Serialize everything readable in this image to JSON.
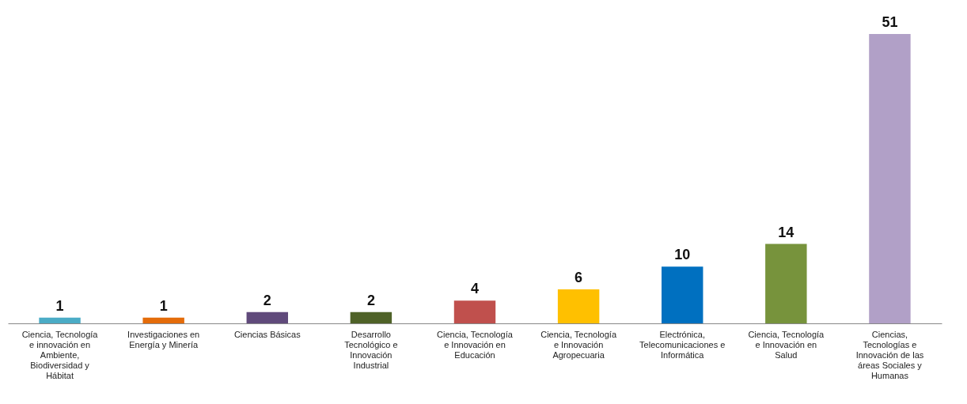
{
  "chart_data": {
    "type": "bar",
    "categories": [
      "Ciencia, Tecnología e innovación en Ambiente, Biodiversidad y Hábitat",
      "Investigaciones en Energía y Minería",
      "Ciencias Básicas",
      "Desarrollo Tecnológico e Innovación Industrial",
      "Ciencia, Tecnología e Innovación en Educación",
      "Ciencia, Tecnología e Innovación Agropecuaria",
      "Electrónica, Telecomunicaciones e Informática",
      "Ciencia, Tecnología e Innovación en Salud",
      "Ciencias, Tecnologías e Innovación de las áreas Sociales y Humanas"
    ],
    "values": [
      1,
      1,
      2,
      2,
      4,
      6,
      10,
      14,
      51
    ],
    "colors": [
      "#4bacc6",
      "#e46c0a",
      "#604a7b",
      "#4f6228",
      "#c0504d",
      "#ffc000",
      "#0070c0",
      "#77933c",
      "#b1a0c7"
    ],
    "data_labels": true
  }
}
